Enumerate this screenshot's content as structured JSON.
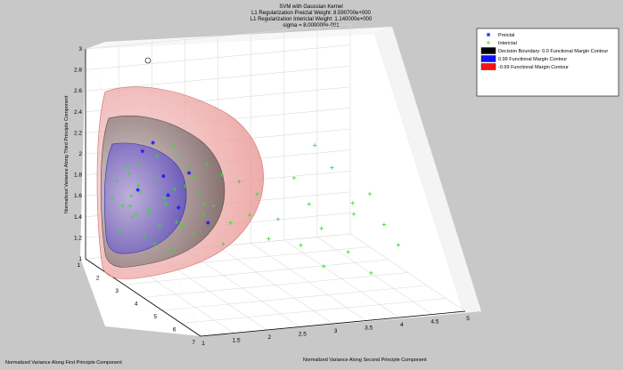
{
  "figure": {
    "background": "#c8c8c8",
    "axes_background": "#ffffff"
  },
  "chart_data": {
    "type": "scatter",
    "projection": "3d",
    "title": [
      "SVM with Gaussian Kernel",
      "L1 Regularization Preictal Weight: 8.590700e+000",
      "L1 Regularization Interictal Weight: 1.140000e+000",
      "sigma = 8.000000e-001"
    ],
    "xlabel": "Normalized Variance Along First Principle Component",
    "ylabel": "Normalized Variance Along Second Principle Component",
    "zlabel": "Normalized Variance Along Third Principle Component",
    "xlim": [
      1,
      7
    ],
    "ylim": [
      1,
      5
    ],
    "zlim": [
      1,
      3
    ],
    "x_ticks": [
      "1",
      "2",
      "3",
      "4",
      "5",
      "6",
      "7"
    ],
    "y_ticks": [
      "1",
      "1.5",
      "2",
      "2.5",
      "3",
      "3.5",
      "4",
      "4.5",
      "5"
    ],
    "z_ticks": [
      "1",
      "1.2",
      "1.4",
      "1.6",
      "1.8",
      "2",
      "2.2",
      "2.4",
      "2.6",
      "2.8",
      "3"
    ],
    "grid": true,
    "legend_position": "top-right",
    "legend": [
      {
        "label": "Preictal",
        "marker": "*",
        "color": "#1a1aff"
      },
      {
        "label": "Interictal",
        "marker": "+",
        "color": "#33dd33"
      },
      {
        "label": "Decision Boundary: 0.0 Functional Margin Contour",
        "marker": "patch",
        "color": "#000000"
      },
      {
        "label": "0.99 Functional Margin Contour",
        "marker": "patch",
        "color": "#1010ff"
      },
      {
        "label": "-0.99 Functional Margin Contour",
        "marker": "patch",
        "color": "#ff1010"
      }
    ],
    "series": [
      {
        "name": "Interictal",
        "color": "#33dd33",
        "marker": "+",
        "points": [
          [
            2.6,
            4.0,
            2.1
          ],
          [
            2.8,
            4.2,
            1.9
          ],
          [
            3.4,
            4.6,
            1.7
          ],
          [
            3.2,
            4.4,
            1.6
          ],
          [
            3.8,
            4.7,
            1.45
          ],
          [
            4.2,
            4.8,
            1.3
          ],
          [
            3.6,
            4.3,
            1.55
          ],
          [
            2.9,
            3.6,
            1.85
          ],
          [
            3.0,
            3.8,
            1.6
          ],
          [
            3.3,
            3.9,
            1.4
          ],
          [
            4.0,
            4.1,
            1.25
          ],
          [
            4.5,
            4.3,
            1.1
          ],
          [
            3.1,
            3.3,
            1.5
          ],
          [
            3.6,
            3.5,
            1.3
          ],
          [
            4.1,
            3.7,
            1.15
          ],
          [
            2.7,
            3.1,
            1.7
          ],
          [
            2.8,
            2.8,
            1.85
          ],
          [
            3.0,
            2.9,
            1.55
          ],
          [
            3.3,
            3.1,
            1.35
          ],
          [
            2.6,
            2.6,
            1.9
          ],
          [
            2.5,
            2.5,
            1.6
          ],
          [
            2.7,
            2.7,
            1.45
          ],
          [
            3.0,
            2.5,
            1.3
          ],
          [
            2.4,
            2.3,
            1.7
          ],
          [
            2.2,
            2.2,
            1.95
          ],
          [
            2.3,
            2.4,
            1.5
          ],
          [
            2.5,
            2.2,
            1.35
          ],
          [
            2.2,
            2.0,
            1.75
          ],
          [
            2.1,
            1.9,
            1.6
          ],
          [
            2.3,
            2.0,
            1.45
          ],
          [
            2.0,
            1.8,
            1.85
          ],
          [
            1.9,
            1.7,
            1.55
          ],
          [
            2.1,
            1.8,
            1.4
          ],
          [
            1.8,
            1.6,
            1.7
          ],
          [
            1.9,
            1.5,
            1.5
          ],
          [
            2.0,
            1.6,
            1.3
          ],
          [
            1.8,
            1.4,
            1.95
          ],
          [
            1.7,
            1.5,
            1.45
          ],
          [
            1.9,
            1.3,
            1.6
          ],
          [
            2.2,
            1.7,
            1.25
          ],
          [
            2.4,
            1.9,
            1.2
          ],
          [
            1.6,
            1.3,
            1.8
          ],
          [
            1.7,
            1.2,
            1.65
          ],
          [
            1.8,
            1.3,
            1.35
          ],
          [
            2.0,
            1.4,
            1.7
          ],
          [
            2.1,
            1.5,
            2.0
          ],
          [
            2.3,
            1.7,
            2.1
          ],
          [
            2.5,
            1.9,
            2.2
          ],
          [
            1.9,
            1.4,
            1.9
          ],
          [
            2.2,
            1.6,
            1.55
          ],
          [
            2.6,
            2.0,
            1.45
          ],
          [
            2.4,
            2.1,
            1.8
          ],
          [
            2.1,
            2.1,
            2.05
          ],
          [
            2.0,
            1.9,
            1.65
          ],
          [
            1.7,
            1.6,
            1.75
          ],
          [
            1.6,
            1.5,
            1.55
          ],
          [
            1.8,
            1.8,
            1.6
          ],
          [
            2.2,
            2.3,
            1.85
          ],
          [
            2.5,
            2.4,
            2.0
          ],
          [
            2.7,
            2.3,
            1.65
          ]
        ]
      },
      {
        "name": "Preictal",
        "color": "#1a1aff",
        "marker": "*",
        "points": [
          [
            2.0,
            1.5,
            1.75
          ],
          [
            2.3,
            1.8,
            1.9
          ],
          [
            1.9,
            1.6,
            2.1
          ],
          [
            2.6,
            2.1,
            1.95
          ],
          [
            2.2,
            1.9,
            1.7
          ],
          [
            2.9,
            2.3,
            1.5
          ],
          [
            2.1,
            1.7,
            2.2
          ],
          [
            2.4,
            2.0,
            1.6
          ]
        ]
      }
    ]
  }
}
